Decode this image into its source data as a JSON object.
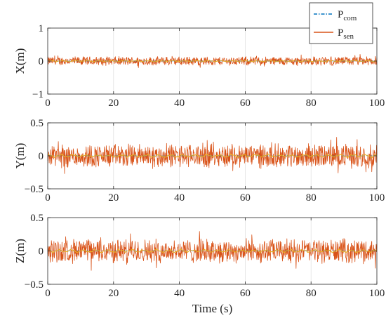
{
  "chart_data": [
    {
      "type": "line",
      "ylabel": "X(m)",
      "xlabel": "",
      "xlim": [
        0,
        100
      ],
      "ylim": [
        -1,
        1
      ],
      "xticks": [
        "0",
        "20",
        "40",
        "60",
        "80",
        "100"
      ],
      "yticks": [
        "1",
        "0",
        "−1"
      ],
      "grid": "vertical",
      "noise_amplitude": 0.15,
      "series": [
        {
          "name": "Pcom",
          "color": "#0072BD",
          "style": "dash-dot"
        },
        {
          "name": "Psen",
          "color": "#D95319",
          "style": "solid"
        }
      ],
      "mean_trace_color": "#EDB120"
    },
    {
      "type": "line",
      "ylabel": "Y(m)",
      "xlabel": "",
      "xlim": [
        0,
        100
      ],
      "ylim": [
        -0.5,
        0.5
      ],
      "xticks": [
        "0",
        "20",
        "40",
        "60",
        "80",
        "100"
      ],
      "yticks": [
        "0.5",
        "0",
        "−0.5"
      ],
      "grid": "vertical",
      "noise_amplitude": 0.2,
      "series": [
        {
          "name": "Pcom",
          "color": "#0072BD",
          "style": "dash-dot"
        },
        {
          "name": "Psen",
          "color": "#D95319",
          "style": "solid"
        }
      ],
      "mean_trace_color": "#EDB120"
    },
    {
      "type": "line",
      "ylabel": "Z(m)",
      "xlabel": "Time (s)",
      "xlim": [
        0,
        100
      ],
      "ylim": [
        -0.5,
        0.5
      ],
      "xticks": [
        "0",
        "20",
        "40",
        "60",
        "80",
        "100"
      ],
      "yticks": [
        "0.5",
        "0",
        "−0.5"
      ],
      "grid": "vertical",
      "noise_amplitude": 0.2,
      "series": [
        {
          "name": "Pcom",
          "color": "#0072BD",
          "style": "dash-dot"
        },
        {
          "name": "Psen",
          "color": "#D95319",
          "style": "solid"
        }
      ],
      "mean_trace_color": "#EDB120"
    }
  ],
  "legend": {
    "placement": "top-right",
    "entries": [
      {
        "base": "P",
        "sub": "com",
        "color": "#0072BD",
        "style": "dash-dot"
      },
      {
        "base": "P",
        "sub": "sen",
        "color": "#D95319",
        "style": "solid"
      }
    ]
  }
}
